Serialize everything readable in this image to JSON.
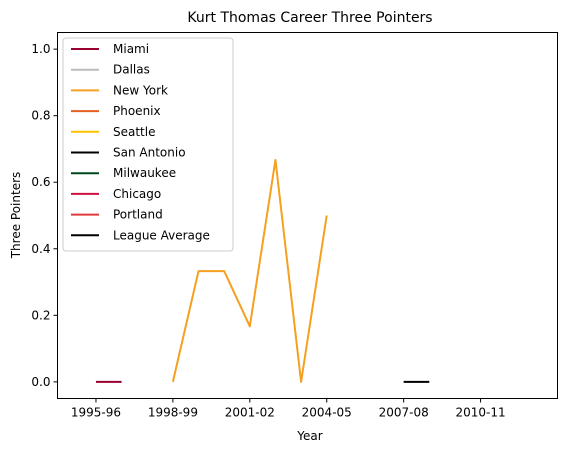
{
  "chart_data": {
    "type": "line",
    "title": "Kurt Thomas  Career Three Pointers",
    "xlabel": "Year",
    "ylabel": "Three Pointers",
    "x_tick_labels": [
      "1995-96",
      "1998-99",
      "2001-02",
      "2004-05",
      "2007-08",
      "2010-11"
    ],
    "y_tick_labels": [
      "0.0",
      "0.2",
      "0.4",
      "0.6",
      "0.8",
      "1.0"
    ],
    "x_categories": [
      "1995-96",
      "1996-97",
      "1997-98",
      "1998-99",
      "1999-00",
      "2000-01",
      "2001-02",
      "2002-03",
      "2003-04",
      "2004-05",
      "2005-06",
      "2006-07",
      "2007-08",
      "2008-09",
      "2009-10",
      "2010-11",
      "2011-12",
      "2012-13"
    ],
    "ylim": [
      -0.05,
      1.05
    ],
    "grid": false,
    "legend_position": "upper left",
    "series": [
      {
        "name": "Miami",
        "color": "#98002E",
        "points": [
          [
            "1995-96",
            0
          ],
          [
            "1996-97",
            0
          ]
        ]
      },
      {
        "name": "Dallas",
        "color": "#BBBBBB",
        "points": []
      },
      {
        "name": "New York",
        "color": "#F5A020",
        "points": [
          [
            "1998-99",
            0
          ],
          [
            "1999-00",
            0.333
          ],
          [
            "2000-01",
            0.333
          ],
          [
            "2001-02",
            0.167
          ],
          [
            "2002-03",
            0.667
          ],
          [
            "2003-04",
            0
          ],
          [
            "2004-05",
            0.5
          ]
        ]
      },
      {
        "name": "Phoenix",
        "color": "#E56020",
        "points": []
      },
      {
        "name": "Seattle",
        "color": "#FFC200",
        "points": []
      },
      {
        "name": "San Antonio",
        "color": "#000000",
        "points": []
      },
      {
        "name": "Milwaukee",
        "color": "#00471B",
        "points": []
      },
      {
        "name": "Chicago",
        "color": "#CE1141",
        "points": []
      },
      {
        "name": "Portland",
        "color": "#E03A3E",
        "points": []
      },
      {
        "name": "League Average",
        "color": "#000000",
        "points": [
          [
            "2007-08",
            0
          ],
          [
            "2008-09",
            0
          ]
        ]
      }
    ]
  }
}
